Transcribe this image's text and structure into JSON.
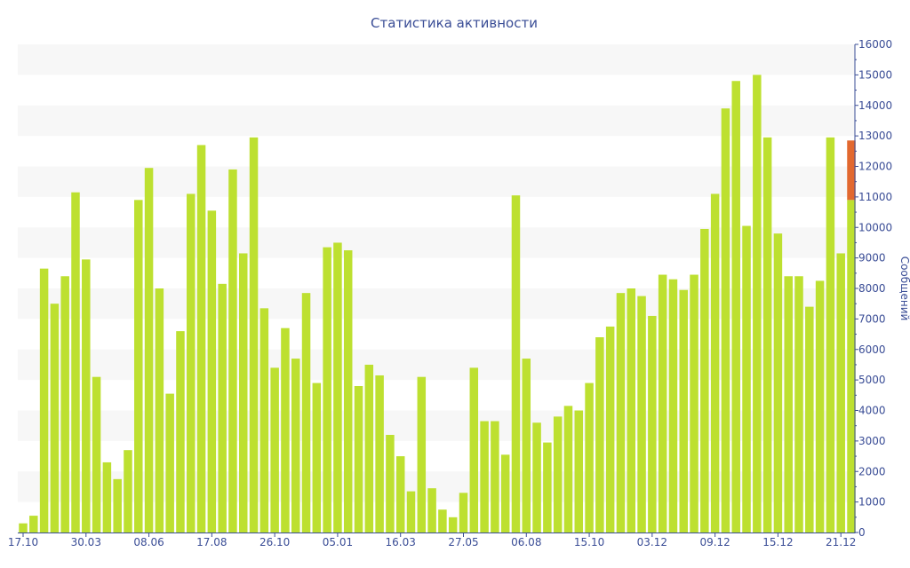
{
  "chart_data": {
    "type": "bar",
    "title": "Статистика активности",
    "xlabel": "",
    "ylabel": "Сообщений",
    "ylim": [
      0,
      16000
    ],
    "yticks": [
      0,
      1000,
      2000,
      3000,
      4000,
      5000,
      6000,
      7000,
      8000,
      9000,
      10000,
      11000,
      12000,
      13000,
      14000,
      15000,
      16000
    ],
    "x_tick_labels": [
      {
        "index": 0,
        "label": "17.10"
      },
      {
        "index": 6,
        "label": "30.03"
      },
      {
        "index": 12,
        "label": "08.06"
      },
      {
        "index": 18,
        "label": "17.08"
      },
      {
        "index": 24,
        "label": "26.10"
      },
      {
        "index": 30,
        "label": "05.01"
      },
      {
        "index": 36,
        "label": "16.03"
      },
      {
        "index": 42,
        "label": "27.05"
      },
      {
        "index": 48,
        "label": "06.08"
      },
      {
        "index": 54,
        "label": "15.10"
      },
      {
        "index": 60,
        "label": "03.12"
      },
      {
        "index": 66,
        "label": "09.12"
      },
      {
        "index": 72,
        "label": "15.12"
      },
      {
        "index": 78,
        "label": "21.12"
      }
    ],
    "grid": "alternating horizontal bands",
    "axis_position": "right",
    "series": [
      {
        "name": "main",
        "color": "#bde030",
        "values": [
          300,
          550,
          8650,
          7500,
          8400,
          11150,
          8950,
          5100,
          2300,
          1750,
          2700,
          10900,
          11950,
          8000,
          4550,
          6600,
          11100,
          12700,
          10550,
          8150,
          11900,
          9150,
          12950,
          7350,
          5400,
          6700,
          5700,
          7850,
          4900,
          9350,
          9500,
          9250,
          4800,
          5500,
          5150,
          3200,
          2500,
          1350,
          5100,
          1450,
          750,
          500,
          1300,
          5400,
          3650,
          3650,
          2550,
          11050,
          5700,
          3600,
          2950,
          3800,
          4150,
          4000,
          4900,
          6400,
          6750,
          7850,
          8000,
          7750,
          7100,
          8450,
          8300,
          7950,
          8450,
          9950,
          11100,
          13900,
          14800,
          10050,
          15000,
          12950,
          9800,
          8400,
          8400,
          7400,
          8250,
          12950,
          9150,
          10900
        ]
      },
      {
        "name": "highlight",
        "color": "#e2682f",
        "values": [
          0,
          0,
          0,
          0,
          0,
          0,
          0,
          0,
          0,
          0,
          0,
          0,
          0,
          0,
          0,
          0,
          0,
          0,
          0,
          0,
          0,
          0,
          0,
          0,
          0,
          0,
          0,
          0,
          0,
          0,
          0,
          0,
          0,
          0,
          0,
          0,
          0,
          0,
          0,
          0,
          0,
          0,
          0,
          0,
          0,
          0,
          0,
          0,
          0,
          0,
          0,
          0,
          0,
          0,
          0,
          0,
          0,
          0,
          0,
          0,
          0,
          0,
          0,
          0,
          0,
          0,
          0,
          0,
          0,
          0,
          0,
          0,
          0,
          0,
          0,
          0,
          0,
          0,
          0,
          1950
        ]
      }
    ]
  }
}
